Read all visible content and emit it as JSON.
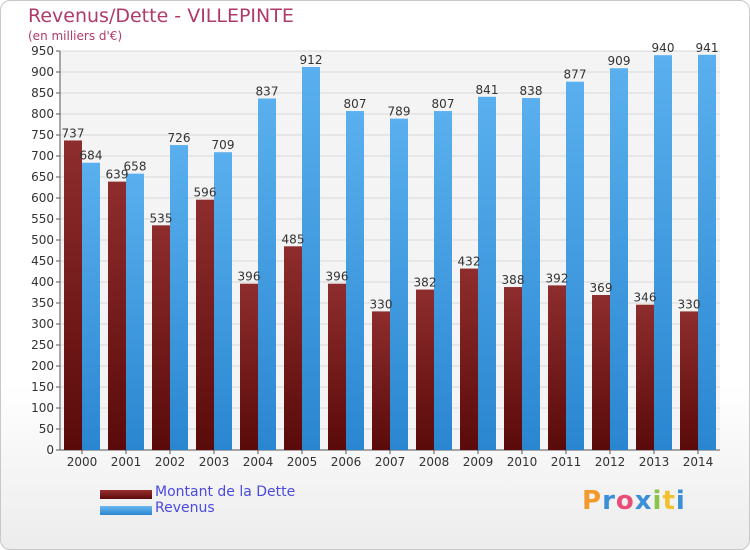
{
  "title": "Revenus/Dette - VILLEPINTE",
  "subtitle": "(en milliers d'€)",
  "logo_text": "Proxiti",
  "colors": {
    "title": "#b03a6a",
    "legend_text": "#4a4ae0",
    "dette": "#7a1a1a",
    "revenus": "#3d9ae0"
  },
  "chart_data": {
    "type": "bar",
    "categories": [
      "2000",
      "2001",
      "2002",
      "2003",
      "2004",
      "2005",
      "2006",
      "2007",
      "2008",
      "2009",
      "2010",
      "2011",
      "2012",
      "2013",
      "2014"
    ],
    "series": [
      {
        "name": "Montant de la Dette",
        "values": [
          737,
          639,
          535,
          596,
          396,
          485,
          396,
          330,
          382,
          432,
          388,
          392,
          369,
          346,
          330
        ]
      },
      {
        "name": "Revenus",
        "values": [
          684,
          658,
          726,
          709,
          837,
          912,
          807,
          789,
          807,
          841,
          838,
          877,
          909,
          940,
          941
        ]
      }
    ],
    "ylim": [
      0,
      950
    ],
    "yticks": [
      0,
      50,
      100,
      150,
      200,
      250,
      300,
      350,
      400,
      450,
      500,
      550,
      600,
      650,
      700,
      750,
      800,
      850,
      900,
      950
    ],
    "grid": true,
    "legend_position": "bottom-left"
  }
}
